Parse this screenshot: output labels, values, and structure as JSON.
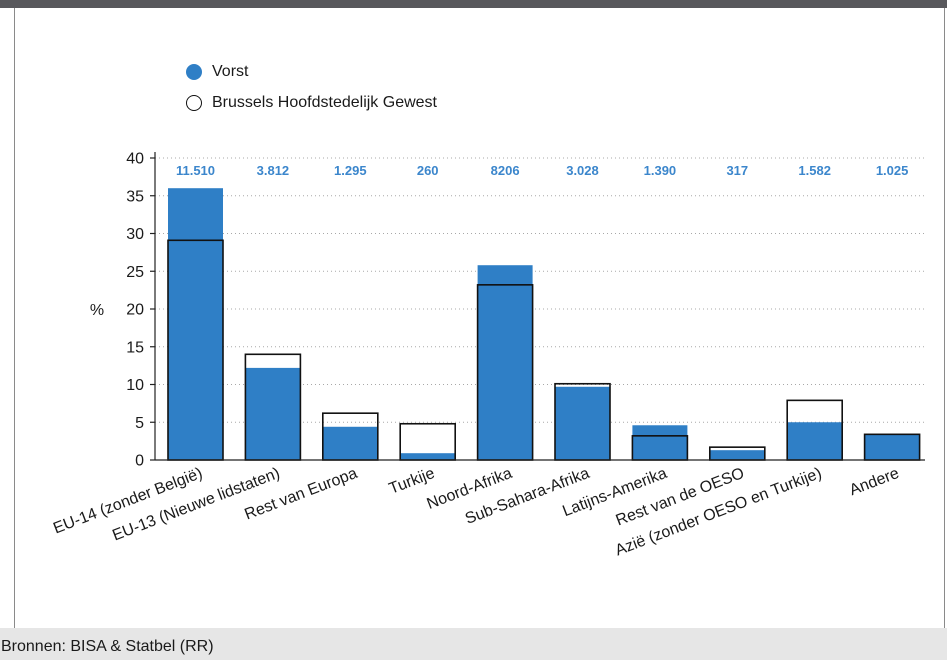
{
  "legend": {
    "items": [
      {
        "label": "Vorst",
        "marker": "filled-circle",
        "color": "#2f7fc6"
      },
      {
        "label": "Brussels Hoofdstedelijk Gewest",
        "marker": "outline-circle",
        "color": "#111111"
      }
    ]
  },
  "footer": {
    "source": "Bronnen: BISA & Statbel (RR)"
  },
  "chart_data": {
    "type": "bar",
    "categories": [
      "EU-14 (zonder België)",
      "EU-13 (Nieuwe lidstaten)",
      "Rest van Europa",
      "Turkije",
      "Noord-Afrika",
      "Sub-Sahara-Afrika",
      "Latijns-Amerika",
      "Rest van de OESO",
      "Azië (zonder OESO en Turkije)",
      "Andere"
    ],
    "series": [
      {
        "name": "Vorst",
        "style": "filled",
        "color": "#2f7fc6",
        "values": [
          36.0,
          12.2,
          4.4,
          0.9,
          25.8,
          9.7,
          4.6,
          1.3,
          5.0,
          3.4
        ]
      },
      {
        "name": "Brussels Hoofdstedelijk Gewest",
        "style": "outline",
        "color": "#111111",
        "values": [
          29.1,
          14.0,
          6.2,
          4.8,
          23.2,
          10.1,
          3.2,
          1.7,
          7.9,
          3.4
        ]
      }
    ],
    "bar_labels": [
      "11.510",
      "3.812",
      "1.295",
      "260",
      "8206",
      "3.028",
      "1.390",
      "317",
      "1.582",
      "1.025"
    ],
    "bar_label_color": "#3b86cc",
    "xlabel": "",
    "ylabel": "%",
    "ylim": [
      0,
      40
    ],
    "yticks": [
      0,
      5,
      10,
      15,
      20,
      25,
      30,
      35,
      40
    ],
    "grid": true,
    "legend_position": "top-left"
  }
}
